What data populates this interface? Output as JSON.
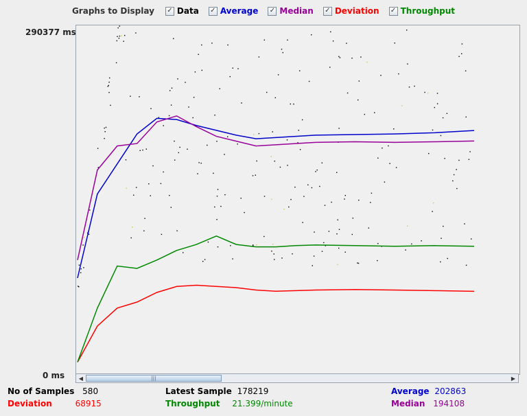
{
  "legend": {
    "title": "Graphs to Display",
    "items": [
      {
        "label": "Data",
        "color": "#000000",
        "checked": true
      },
      {
        "label": "Average",
        "color": "#0000cc",
        "checked": true
      },
      {
        "label": "Median",
        "color": "#990099",
        "checked": true
      },
      {
        "label": "Deviation",
        "color": "#ff0000",
        "checked": true
      },
      {
        "label": "Throughput",
        "color": "#008800",
        "checked": true
      }
    ]
  },
  "axis": {
    "ymax_label": "290377  ms",
    "ymin_label": "0  ms",
    "ymax": 290377,
    "ymin": 0
  },
  "stats": {
    "samples_label": "No of Samples",
    "samples_value": "580",
    "deviation_label": "Deviation",
    "deviation_value": "68915",
    "latest_label": "Latest Sample",
    "latest_value": "178219",
    "throughput_label": "Throughput",
    "throughput_value": "21.399/minute",
    "average_label": "Average",
    "average_value": "202863",
    "median_label": "Median",
    "median_value": "194108"
  },
  "chart_data": {
    "type": "line",
    "ylim": [
      0,
      290377
    ],
    "x": [
      0,
      5,
      10,
      15,
      20,
      25,
      30,
      35,
      40,
      45,
      50,
      55,
      60,
      70,
      80,
      90,
      100
    ],
    "series": [
      {
        "name": "Average",
        "color": "#0000cc",
        "values": [
          80000,
          150000,
          175000,
          200000,
          213000,
          212000,
          207000,
          203000,
          199000,
          196000,
          197000,
          198000,
          199000,
          199500,
          200000,
          201000,
          202863
        ]
      },
      {
        "name": "Median",
        "color": "#990099",
        "values": [
          95000,
          170000,
          190000,
          192000,
          210000,
          215000,
          206000,
          198000,
          194000,
          190000,
          191000,
          192000,
          193000,
          193500,
          193000,
          193500,
          194108
        ]
      },
      {
        "name": "Deviation",
        "color": "#ff0000",
        "values": [
          10000,
          40000,
          55000,
          60000,
          68000,
          73000,
          74000,
          73000,
          72000,
          70000,
          69000,
          69500,
          70000,
          70500,
          70000,
          69500,
          68915
        ]
      },
      {
        "name": "Throughput",
        "color": "#008800",
        "values": [
          10000,
          55000,
          90000,
          88000,
          95000,
          103000,
          108000,
          115000,
          108000,
          106000,
          106000,
          107000,
          107500,
          107000,
          106500,
          107000,
          106500
        ]
      }
    ]
  }
}
